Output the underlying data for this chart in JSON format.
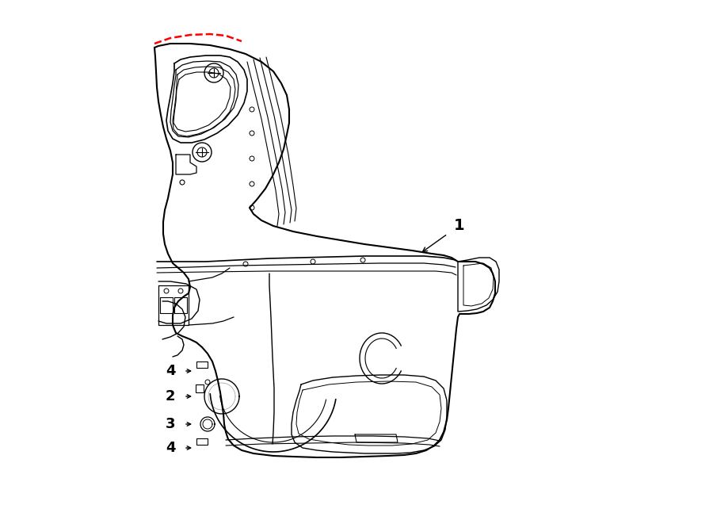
{
  "background_color": "#ffffff",
  "line_color": "#000000",
  "red_color": "#ff0000",
  "fig_width": 9.0,
  "fig_height": 6.61,
  "dpi": 100
}
